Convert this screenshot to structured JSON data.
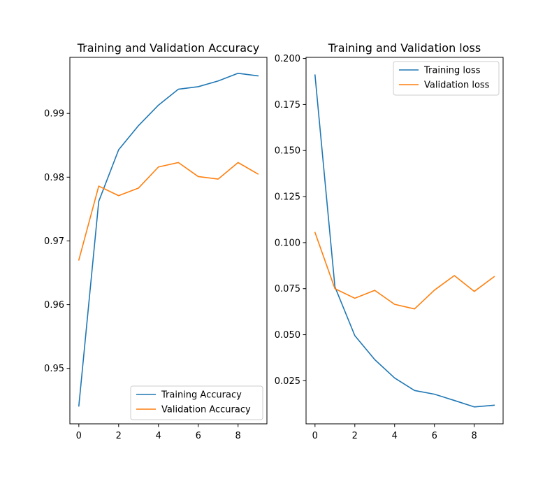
{
  "chart_data": [
    {
      "type": "line",
      "title": "Training and Validation Accuracy",
      "xlabel": "",
      "ylabel": "",
      "xlim": [
        -0.45,
        9.45
      ],
      "ylim": [
        0.9413,
        0.9988
      ],
      "xticks": [
        0,
        2,
        4,
        6,
        8
      ],
      "yticks": [
        0.95,
        0.96,
        0.97,
        0.98,
        0.99
      ],
      "ytick_labels": [
        "0.95",
        "0.96",
        "0.97",
        "0.98",
        "0.99"
      ],
      "legend_position": "lower-right",
      "grid": false,
      "x": [
        0,
        1,
        2,
        3,
        4,
        5,
        6,
        7,
        8,
        9
      ],
      "series": [
        {
          "name": "Training Accuracy",
          "color": "#1f77b4",
          "values": [
            0.9441,
            0.9762,
            0.9843,
            0.9881,
            0.9913,
            0.9938,
            0.9942,
            0.9951,
            0.9963,
            0.9959
          ]
        },
        {
          "name": "Validation Accuracy",
          "color": "#ff7f0e",
          "values": [
            0.967,
            0.9786,
            0.9771,
            0.9783,
            0.9816,
            0.9823,
            0.9801,
            0.9797,
            0.9823,
            0.9805
          ]
        }
      ]
    },
    {
      "type": "line",
      "title": "Training and Validation loss",
      "xlabel": "",
      "ylabel": "",
      "xlim": [
        -0.45,
        9.45
      ],
      "ylim": [
        0.0016,
        0.2006
      ],
      "xticks": [
        0,
        2,
        4,
        6,
        8
      ],
      "yticks": [
        0.025,
        0.05,
        0.075,
        0.1,
        0.125,
        0.15,
        0.175,
        0.2
      ],
      "ytick_labels": [
        "0.025",
        "0.050",
        "0.075",
        "0.100",
        "0.125",
        "0.150",
        "0.175",
        "0.200"
      ],
      "legend_position": "upper-right",
      "grid": false,
      "x": [
        0,
        1,
        2,
        3,
        4,
        5,
        6,
        7,
        8,
        9
      ],
      "series": [
        {
          "name": "Training loss",
          "color": "#1f77b4",
          "values": [
            0.191,
            0.076,
            0.0495,
            0.0365,
            0.0265,
            0.0197,
            0.0177,
            0.0143,
            0.0108,
            0.0117
          ]
        },
        {
          "name": "Validation loss",
          "color": "#ff7f0e",
          "values": [
            0.1055,
            0.075,
            0.0698,
            0.0741,
            0.0665,
            0.064,
            0.0742,
            0.0821,
            0.0735,
            0.0815
          ]
        }
      ]
    }
  ]
}
